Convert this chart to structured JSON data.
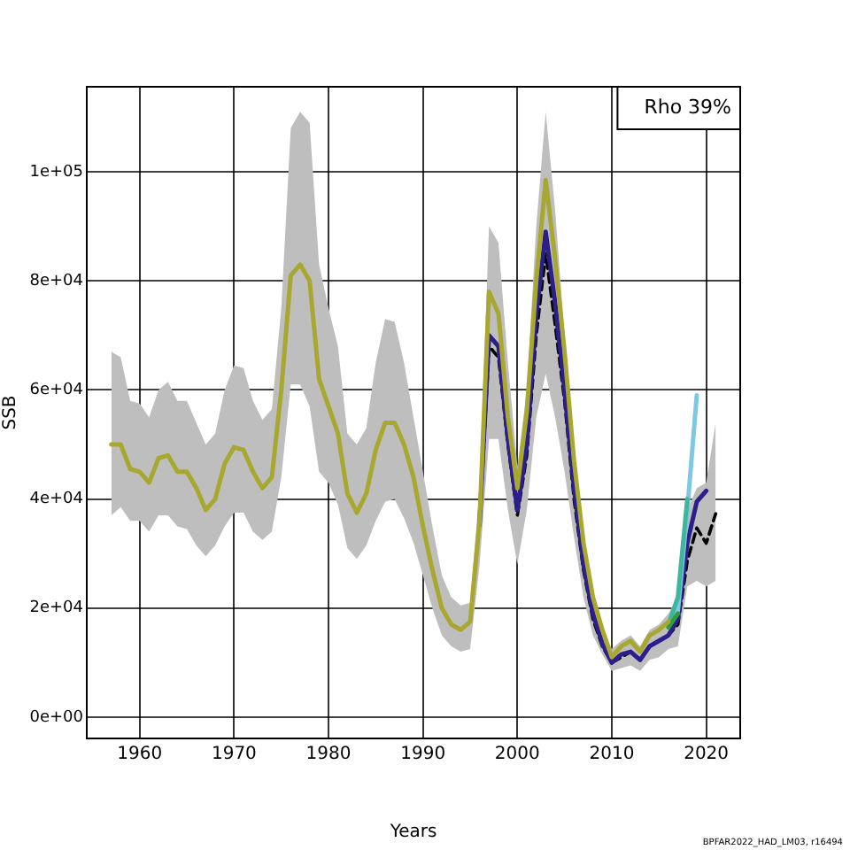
{
  "chart_data": {
    "type": "line",
    "xlabel": "Years",
    "ylabel": "SSB",
    "x": [
      1957,
      1958,
      1959,
      1960,
      1961,
      1962,
      1963,
      1964,
      1965,
      1966,
      1967,
      1968,
      1969,
      1970,
      1971,
      1972,
      1973,
      1974,
      1975,
      1976,
      1977,
      1978,
      1979,
      1980,
      1981,
      1982,
      1983,
      1984,
      1985,
      1986,
      1987,
      1988,
      1989,
      1990,
      1991,
      1992,
      1993,
      1994,
      1995,
      1996,
      1997,
      1998,
      1999,
      2000,
      2001,
      2002,
      2003,
      2004,
      2005,
      2006,
      2007,
      2008,
      2009,
      2010,
      2011,
      2012,
      2013,
      2014,
      2015,
      2016,
      2017,
      2018,
      2019,
      2020,
      2021
    ],
    "xlim": [
      1954.4,
      2023.6
    ],
    "xticks": [
      1960,
      1970,
      1980,
      1990,
      2000,
      2010,
      2020
    ],
    "ylim": [
      -3900,
      115600
    ],
    "yticks": [
      {
        "value": 0,
        "label": "0e+00"
      },
      {
        "value": 20000,
        "label": "2e+04"
      },
      {
        "value": 40000,
        "label": "4e+04"
      },
      {
        "value": 60000,
        "label": "6e+04"
      },
      {
        "value": 80000,
        "label": "8e+04"
      },
      {
        "value": 100000,
        "label": "1e+05"
      }
    ],
    "grid": true,
    "legend": false,
    "series": [
      {
        "color": "#000000",
        "line_style": "dashed",
        "values": [
          null,
          null,
          null,
          null,
          null,
          null,
          null,
          null,
          null,
          null,
          null,
          null,
          null,
          null,
          null,
          null,
          null,
          null,
          null,
          null,
          null,
          null,
          null,
          null,
          null,
          null,
          null,
          null,
          null,
          null,
          null,
          null,
          null,
          null,
          null,
          null,
          null,
          null,
          null,
          35000,
          68000,
          66000,
          50000,
          37000,
          48000,
          70000,
          85000,
          72000,
          58000,
          40000,
          27000,
          18000,
          13000,
          10000,
          11000,
          12000,
          10500,
          13000,
          14000,
          15000,
          17000,
          28700,
          34700,
          31900,
          37300
        ],
        "lower": [
          37000,
          38500,
          36000,
          36000,
          34000,
          37000,
          37000,
          35000,
          34500,
          31500,
          29500,
          31500,
          35000,
          37500,
          37500,
          34000,
          32500,
          34000,
          44000,
          61000,
          61000,
          57000,
          45000,
          43000,
          39000,
          31000,
          29000,
          31500,
          36000,
          39500,
          40000,
          36500,
          32000,
          26000,
          20000,
          15000,
          13000,
          12000,
          12500,
          28000,
          51000,
          51000,
          38000,
          28000,
          38000,
          55000,
          63000,
          55000,
          45000,
          33000,
          22000,
          15000,
          11500,
          8500,
          9000,
          9500,
          8500,
          10500,
          11000,
          12500,
          13000,
          24000,
          25000,
          24000,
          25000
        ],
        "upper": [
          67000,
          66000,
          58000,
          57500,
          55000,
          60000,
          61500,
          58000,
          58000,
          54000,
          50000,
          52000,
          60000,
          64500,
          64000,
          58000,
          54500,
          56500,
          75000,
          108000,
          111000,
          109000,
          83000,
          75000,
          68000,
          52000,
          50000,
          53000,
          65000,
          73000,
          72500,
          65000,
          55000,
          45000,
          35000,
          26000,
          22000,
          20500,
          21000,
          42000,
          90000,
          87000,
          65000,
          46000,
          60000,
          90000,
          111000,
          93000,
          70000,
          49000,
          33000,
          21000,
          16000,
          12500,
          14000,
          15000,
          13000,
          16000,
          17000,
          19000,
          22000,
          38000,
          42000,
          43000,
          54000
        ]
      },
      {
        "color": "#2c1f8c",
        "values": [
          null,
          null,
          null,
          null,
          null,
          null,
          null,
          null,
          null,
          null,
          null,
          null,
          null,
          null,
          null,
          null,
          null,
          null,
          null,
          null,
          null,
          null,
          null,
          null,
          null,
          null,
          null,
          null,
          null,
          null,
          null,
          null,
          null,
          null,
          null,
          null,
          null,
          null,
          null,
          35500,
          70000,
          68000,
          51000,
          38000,
          50000,
          74000,
          89000,
          76000,
          60000,
          42000,
          28000,
          19000,
          13500,
          10000,
          11500,
          12000,
          10500,
          13000,
          14000,
          15000,
          18000,
          32000,
          39500,
          41500,
          null
        ]
      },
      {
        "color": "#7ec8e3",
        "values": [
          null,
          null,
          null,
          null,
          null,
          null,
          null,
          null,
          null,
          null,
          null,
          null,
          null,
          null,
          null,
          null,
          null,
          null,
          null,
          null,
          null,
          null,
          null,
          null,
          null,
          null,
          null,
          null,
          null,
          null,
          null,
          null,
          null,
          null,
          null,
          null,
          null,
          null,
          null,
          null,
          null,
          null,
          null,
          null,
          null,
          null,
          null,
          null,
          null,
          null,
          null,
          null,
          null,
          null,
          null,
          null,
          null,
          null,
          null,
          16500,
          19500,
          38000,
          59000,
          null,
          null
        ]
      },
      {
        "color": "#3fb59e",
        "values": [
          null,
          null,
          null,
          null,
          null,
          null,
          null,
          null,
          null,
          null,
          null,
          null,
          null,
          null,
          null,
          null,
          null,
          null,
          null,
          null,
          null,
          null,
          null,
          null,
          null,
          null,
          null,
          null,
          null,
          null,
          null,
          null,
          null,
          null,
          null,
          null,
          null,
          null,
          null,
          null,
          null,
          null,
          null,
          null,
          null,
          null,
          null,
          null,
          null,
          null,
          null,
          null,
          null,
          null,
          null,
          null,
          null,
          null,
          null,
          17000,
          22000,
          40000,
          null,
          null,
          null
        ]
      },
      {
        "color": "#2e9e3a",
        "values": [
          null,
          null,
          null,
          null,
          null,
          null,
          null,
          null,
          null,
          null,
          null,
          null,
          null,
          null,
          null,
          null,
          null,
          null,
          null,
          null,
          null,
          null,
          null,
          null,
          null,
          null,
          null,
          null,
          null,
          null,
          null,
          null,
          null,
          null,
          null,
          null,
          null,
          null,
          null,
          null,
          null,
          null,
          null,
          null,
          null,
          null,
          null,
          null,
          null,
          null,
          null,
          null,
          null,
          null,
          null,
          null,
          null,
          null,
          null,
          16500,
          19000,
          null,
          null,
          null,
          null
        ]
      },
      {
        "color": "#a8a830",
        "values": [
          50000,
          50000,
          45500,
          45000,
          43000,
          47500,
          48000,
          45000,
          45000,
          42000,
          38000,
          40000,
          46500,
          49500,
          49000,
          45000,
          42000,
          44000,
          60000,
          81000,
          83000,
          80000,
          62000,
          57000,
          52000,
          41000,
          37500,
          41000,
          49000,
          54000,
          54000,
          50000,
          44000,
          35000,
          27000,
          20000,
          17000,
          16000,
          17500,
          36000,
          78000,
          74000,
          55000,
          42000,
          56000,
          80000,
          98500,
          84000,
          67000,
          47000,
          32000,
          22000,
          16000,
          11000,
          13000,
          14000,
          12000,
          15000,
          16000,
          17500,
          null,
          null,
          null,
          null,
          null
        ]
      }
    ],
    "annotations": [
      "Rho 39%",
      "BPFAR2022_HAD_LM03, r16494"
    ]
  }
}
